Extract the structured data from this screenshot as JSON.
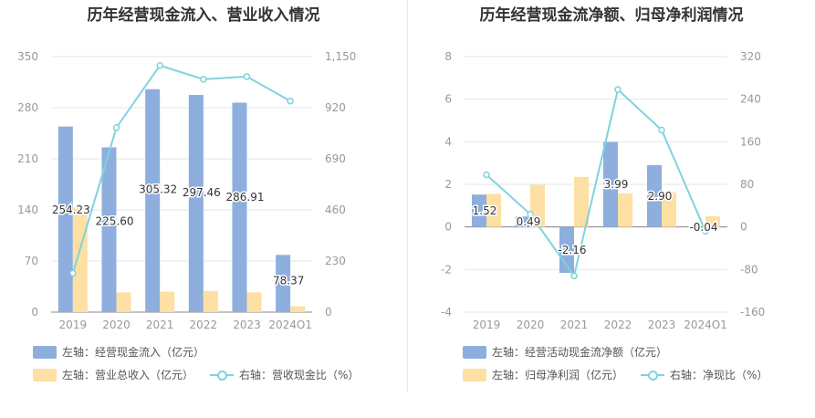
{
  "colors": {
    "bar1": "#8eaedd",
    "bar2": "#fedfa4",
    "line": "#7fd3de",
    "grid": "#e3e6ee",
    "axis": "#999999"
  },
  "left": {
    "title": "历年经营现金流入、营业收入情况",
    "legend": {
      "bar1": "左轴：经营现金流入（亿元）",
      "bar2": "左轴：营业总收入（亿元）",
      "line": "右轴：营收现金比（%）"
    }
  },
  "right": {
    "title": "历年经营现金流净额、归母净利润情况",
    "legend": {
      "bar1": "左轴：经营活动现金流净额（亿元）",
      "bar2": "左轴：归母净利润（亿元）",
      "line": "右轴：净现比（%）"
    }
  },
  "chart_data": [
    {
      "type": "bar",
      "title": "历年经营现金流入、营业收入情况",
      "categories": [
        "2019",
        "2020",
        "2021",
        "2022",
        "2023",
        "2024Q1"
      ],
      "ylim": [
        0,
        350
      ],
      "y_ticks": [
        "0",
        "70",
        "140",
        "210",
        "280",
        "350"
      ],
      "y2lim": [
        0,
        1150
      ],
      "y2_ticks": [
        "0",
        "230",
        "460",
        "690",
        "920",
        "1,150"
      ],
      "series": [
        {
          "name": "左轴：经营现金流入（亿元）",
          "kind": "bar",
          "axis": "left",
          "values": [
            254.23,
            225.6,
            305.32,
            297.46,
            286.91,
            78.37
          ],
          "labels": [
            "254.23",
            "225.60",
            "305.32",
            "297.46",
            "286.91",
            "78.37"
          ]
        },
        {
          "name": "左轴：营业总收入（亿元）",
          "kind": "bar",
          "axis": "left",
          "values": [
            143,
            27,
            28,
            29,
            27,
            8
          ]
        },
        {
          "name": "右轴：营收现金比（%）",
          "kind": "line",
          "axis": "right",
          "values": [
            175,
            830,
            1110,
            1048,
            1060,
            950
          ]
        }
      ],
      "grid": true,
      "legend_position": "bottom"
    },
    {
      "type": "bar",
      "title": "历年经营现金流净额、归母净利润情况",
      "categories": [
        "2019",
        "2020",
        "2021",
        "2022",
        "2023",
        "2024Q1"
      ],
      "ylim": [
        -4,
        8
      ],
      "y_ticks": [
        "-4",
        "-2",
        "0",
        "2",
        "4",
        "6",
        "8"
      ],
      "y2lim": [
        -160,
        320
      ],
      "y2_ticks": [
        "-160",
        "-80",
        "0",
        "80",
        "160",
        "240",
        "320"
      ],
      "series": [
        {
          "name": "左轴：经营活动现金流净额（亿元）",
          "kind": "bar",
          "axis": "left",
          "values": [
            1.52,
            0.49,
            -2.16,
            3.99,
            2.9,
            -0.04
          ],
          "labels": [
            "1.52",
            "0.49",
            "-2.16",
            "3.99",
            "2.90",
            "-0.04"
          ]
        },
        {
          "name": "左轴：归母净利润（亿元）",
          "kind": "bar",
          "axis": "left",
          "values": [
            1.55,
            1.98,
            2.35,
            1.58,
            1.63,
            0.5
          ]
        },
        {
          "name": "右轴：净现比（%）",
          "kind": "line",
          "axis": "right",
          "values": [
            98,
            24,
            -92,
            258,
            182,
            -8
          ]
        }
      ],
      "grid": true,
      "legend_position": "bottom"
    }
  ]
}
